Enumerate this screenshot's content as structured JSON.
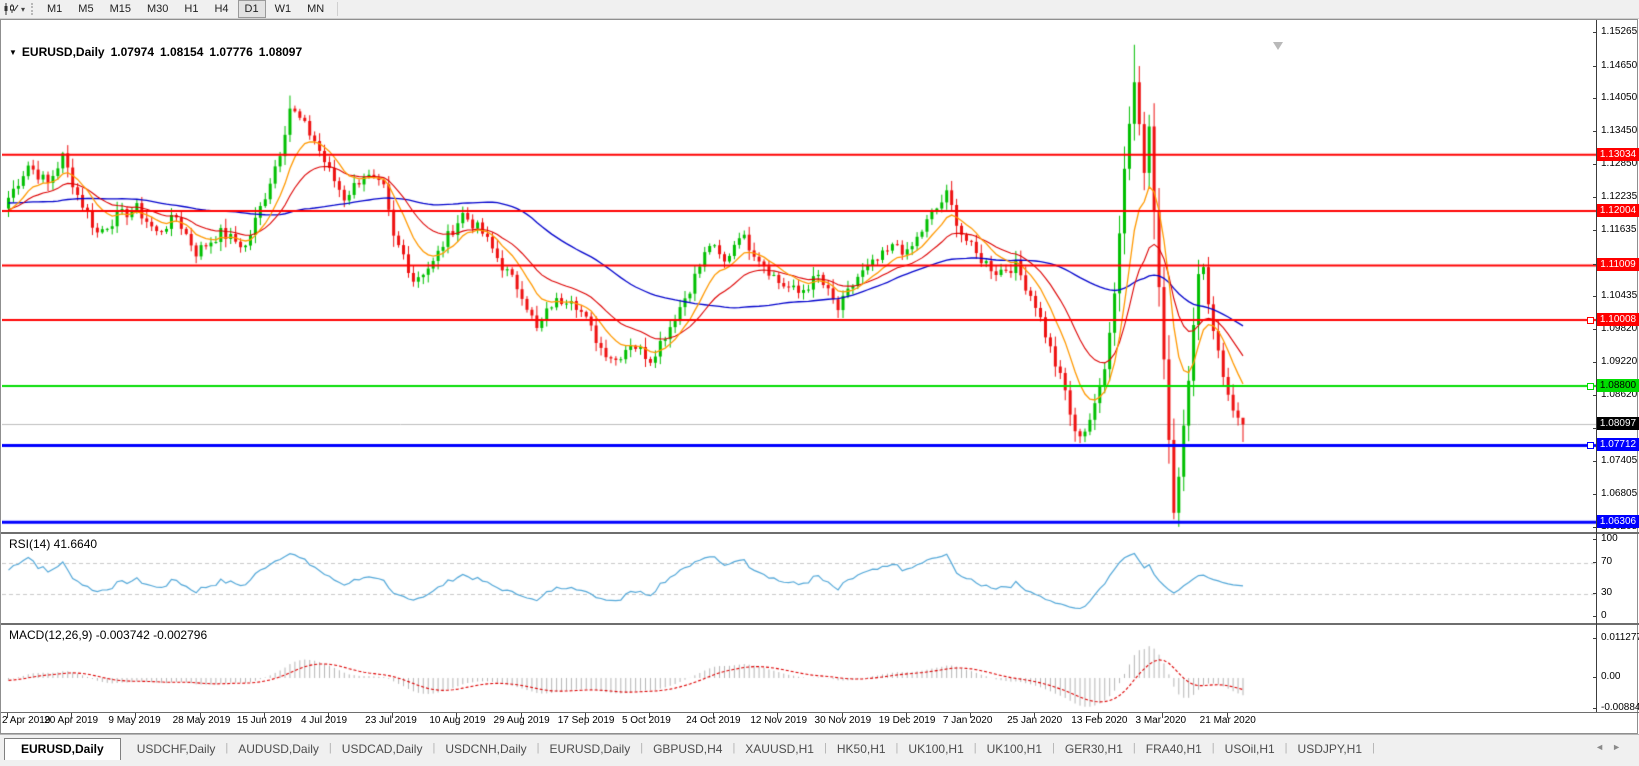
{
  "toolbar": {
    "periods": [
      "M1",
      "M5",
      "M15",
      "M30",
      "H1",
      "H4",
      "D1",
      "W1",
      "MN"
    ],
    "active_period": "D1"
  },
  "chart": {
    "title": {
      "collapse_icon": "▼",
      "symbol": "EURUSD,Daily",
      "open": "1.07974",
      "high": "1.08154",
      "low": "1.07776",
      "close": "1.08097"
    },
    "axis_ticks": [
      "1.15265",
      "1.14650",
      "1.14050",
      "1.13450",
      "1.12850",
      "1.12235",
      "1.11635",
      "1.11020",
      "1.10435",
      "1.09820",
      "1.09220",
      "1.08620",
      "1.08020",
      "1.07405",
      "1.06805",
      "1.06205"
    ],
    "hlines": [
      {
        "label": "1.13034",
        "price": 1.13034,
        "color": "#ff0000",
        "text_color": "#ffffff",
        "thickness": 2,
        "handle": false
      },
      {
        "label": "1.12004",
        "price": 1.12004,
        "color": "#ff0000",
        "text_color": "#ffffff",
        "thickness": 2,
        "handle": false
      },
      {
        "label": "1.11009",
        "price": 1.11009,
        "color": "#ff0000",
        "text_color": "#ffffff",
        "thickness": 2,
        "handle": false
      },
      {
        "label": "1.10008",
        "price": 1.10008,
        "color": "#ff0000",
        "text_color": "#ffffff",
        "thickness": 2,
        "handle": true
      },
      {
        "label": "1.08800",
        "price": 1.088,
        "color": "#00dd00",
        "text_color": "#000000",
        "thickness": 2,
        "handle": true
      },
      {
        "label": "1.07712",
        "price": 1.07712,
        "color": "#0000ff",
        "text_color": "#ffffff",
        "thickness": 3,
        "handle": true
      },
      {
        "label": "1.06306",
        "price": 1.06306,
        "color": "#0000ff",
        "text_color": "#ffffff",
        "thickness": 3,
        "handle": false
      }
    ],
    "current_price": {
      "label": "1.08097",
      "price": 1.08097,
      "bg": "#000000",
      "text_color": "#ffffff"
    },
    "dates": [
      "2 Apr 2019",
      "20 Apr 2019",
      "9 May 2019",
      "28 May 2019",
      "15 Jun 2019",
      "4 Jul 2019",
      "23 Jul 2019",
      "10 Aug 2019",
      "29 Aug 2019",
      "17 Sep 2019",
      "5 Oct 2019",
      "24 Oct 2019",
      "12 Nov 2019",
      "30 Nov 2019",
      "19 Dec 2019",
      "7 Jan 2020",
      "25 Jan 2020",
      "13 Feb 2020",
      "3 Mar 2020",
      "21 Mar 2020"
    ],
    "candle_count": 251,
    "price_anchors": [
      [
        0,
        1.1225
      ],
      [
        4,
        1.1285
      ],
      [
        8,
        1.125
      ],
      [
        11,
        1.13
      ],
      [
        14,
        1.123
      ],
      [
        18,
        1.116
      ],
      [
        22,
        1.119
      ],
      [
        26,
        1.1205
      ],
      [
        30,
        1.116
      ],
      [
        34,
        1.119
      ],
      [
        38,
        1.1125
      ],
      [
        43,
        1.116
      ],
      [
        48,
        1.1135
      ],
      [
        52,
        1.123
      ],
      [
        55,
        1.131
      ],
      [
        57,
        1.139
      ],
      [
        59,
        1.1368
      ],
      [
        62,
        1.133
      ],
      [
        65,
        1.1272
      ],
      [
        68,
        1.1225
      ],
      [
        72,
        1.1268
      ],
      [
        76,
        1.124
      ],
      [
        78,
        1.115
      ],
      [
        80,
        1.112
      ],
      [
        82,
        1.1075
      ],
      [
        86,
        1.1105
      ],
      [
        88,
        1.114
      ],
      [
        92,
        1.1195
      ],
      [
        96,
        1.116
      ],
      [
        100,
        1.11
      ],
      [
        104,
        1.105
      ],
      [
        107,
        1.0982
      ],
      [
        110,
        1.103
      ],
      [
        114,
        1.1045
      ],
      [
        117,
        1.1
      ],
      [
        120,
        1.095
      ],
      [
        123,
        1.0928
      ],
      [
        126,
        1.096
      ],
      [
        130,
        1.093
      ],
      [
        134,
        1.099
      ],
      [
        138,
        1.106
      ],
      [
        142,
        1.114
      ],
      [
        145,
        1.1105
      ],
      [
        148,
        1.116
      ],
      [
        152,
        1.1115
      ],
      [
        156,
        1.107
      ],
      [
        160,
        1.105
      ],
      [
        164,
        1.108
      ],
      [
        168,
        1.102
      ],
      [
        172,
        1.108
      ],
      [
        176,
        1.111
      ],
      [
        180,
        1.114
      ],
      [
        182,
        1.112
      ],
      [
        186,
        1.118
      ],
      [
        190,
        1.123
      ],
      [
        193,
        1.116
      ],
      [
        196,
        1.112
      ],
      [
        200,
        1.109
      ],
      [
        204,
        1.11
      ],
      [
        208,
        1.103
      ],
      [
        212,
        1.092
      ],
      [
        214,
        1.087
      ],
      [
        216,
        1.079
      ],
      [
        218,
        1.08
      ],
      [
        220,
        1.084
      ],
      [
        222,
        1.092
      ],
      [
        224,
        1.105
      ],
      [
        226,
        1.128
      ],
      [
        228,
        1.144
      ],
      [
        229,
        1.137
      ],
      [
        230,
        1.128
      ],
      [
        231,
        1.135
      ],
      [
        232,
        1.12
      ],
      [
        233,
        1.106
      ],
      [
        234,
        1.092
      ],
      [
        235,
        1.079
      ],
      [
        236,
        1.065
      ],
      [
        237,
        1.072
      ],
      [
        238,
        1.081
      ],
      [
        239,
        1.09
      ],
      [
        240,
        1.1
      ],
      [
        241,
        1.108
      ],
      [
        242,
        1.109
      ],
      [
        243,
        1.104
      ],
      [
        244,
        1.098
      ],
      [
        245,
        1.095
      ],
      [
        246,
        1.09
      ],
      [
        247,
        1.087
      ],
      [
        248,
        1.083
      ],
      [
        249,
        1.0822
      ],
      [
        250,
        1.08097
      ]
    ],
    "wick_overrides": {
      "11": {
        "high": 1.1309
      },
      "57": {
        "high": 1.1412
      },
      "216": {
        "low": 1.0778
      },
      "228": {
        "high": 1.1505
      },
      "229": {
        "high": 1.1466
      },
      "236": {
        "low": 1.0636
      },
      "250": {
        "high": 1.08154,
        "low": 1.07776
      }
    },
    "colors": {
      "bull": "#00bf00",
      "bear": "#ee1111",
      "ma_fast": "#ff9900",
      "ma_mid": "#dd0000",
      "ma_slow": "#0000cc",
      "rsi_line": "#52a7d8",
      "rsi_dash": "#c8c8c8",
      "macd_hist": "#b5b5b5",
      "macd_signal": "#dd0000",
      "current_line": "#bdbdbd"
    }
  },
  "rsi": {
    "label": "RSI(14) 41.6640",
    "ticks": [
      "100",
      "70",
      "30",
      "0"
    ],
    "levels": [
      70,
      30
    ],
    "last_value": 41.664
  },
  "macd": {
    "label": "MACD(12,26,9) -0.003742 -0.002796",
    "ticks": [
      "0.011277",
      "0.00",
      "-0.008845"
    ]
  },
  "tabs": {
    "items": [
      {
        "label": "EURUSD,Daily",
        "active": true
      },
      {
        "label": "USDCHF,Daily",
        "active": false
      },
      {
        "label": "AUDUSD,Daily",
        "active": false
      },
      {
        "label": "USDCAD,Daily",
        "active": false
      },
      {
        "label": "USDCNH,Daily",
        "active": false
      },
      {
        "label": "EURUSD,Daily",
        "active": false
      },
      {
        "label": "GBPUSD,H4",
        "active": false
      },
      {
        "label": "XAUUSD,H1",
        "active": false
      },
      {
        "label": "HK50,H1",
        "active": false
      },
      {
        "label": "UK100,H1",
        "active": false
      },
      {
        "label": "UK100,H1",
        "active": false
      },
      {
        "label": "GER30,H1",
        "active": false
      },
      {
        "label": "FRA40,H1",
        "active": false
      },
      {
        "label": "USOil,H1",
        "active": false
      },
      {
        "label": "USDJPY,H1",
        "active": false
      }
    ],
    "scroll_left": "◄",
    "scroll_right": "►"
  }
}
